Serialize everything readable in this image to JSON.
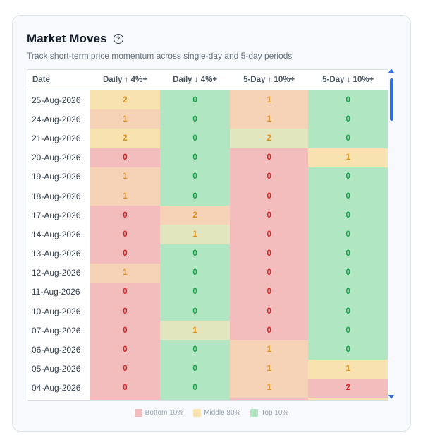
{
  "header": {
    "title": "Market Moves",
    "help_icon": "question-circle-icon",
    "subtitle": "Track short-term price momentum across single-day and 5-day periods"
  },
  "table": {
    "columns": [
      "Date",
      "Daily ↑ 4%+",
      "Daily ↓ 4%+",
      "5-Day ↑ 10%+",
      "5-Day ↓ 10%+"
    ],
    "rows": [
      {
        "date": "25-Aug-2026",
        "values": [
          "2",
          "0",
          "1",
          "0"
        ],
        "bands": [
          "mid",
          "top",
          "mid-low",
          "top"
        ]
      },
      {
        "date": "24-Aug-2026",
        "values": [
          "1",
          "0",
          "1",
          "0"
        ],
        "bands": [
          "mid-low",
          "top",
          "mid-low",
          "top"
        ]
      },
      {
        "date": "21-Aug-2026",
        "values": [
          "2",
          "0",
          "2",
          "0"
        ],
        "bands": [
          "mid",
          "top",
          "mid-high",
          "top"
        ]
      },
      {
        "date": "20-Aug-2026",
        "values": [
          "0",
          "0",
          "0",
          "1"
        ],
        "bands": [
          "bottom",
          "top",
          "bottom",
          "mid"
        ]
      },
      {
        "date": "19-Aug-2026",
        "values": [
          "1",
          "0",
          "0",
          "0"
        ],
        "bands": [
          "mid-low",
          "top",
          "bottom",
          "top"
        ]
      },
      {
        "date": "18-Aug-2026",
        "values": [
          "1",
          "0",
          "0",
          "0"
        ],
        "bands": [
          "mid-low",
          "top",
          "bottom",
          "top"
        ]
      },
      {
        "date": "17-Aug-2026",
        "values": [
          "0",
          "2",
          "0",
          "0"
        ],
        "bands": [
          "bottom",
          "mid-low",
          "bottom",
          "top"
        ]
      },
      {
        "date": "14-Aug-2026",
        "values": [
          "0",
          "1",
          "0",
          "0"
        ],
        "bands": [
          "bottom",
          "mid-high",
          "bottom",
          "top"
        ]
      },
      {
        "date": "13-Aug-2026",
        "values": [
          "0",
          "0",
          "0",
          "0"
        ],
        "bands": [
          "bottom",
          "top",
          "bottom",
          "top"
        ]
      },
      {
        "date": "12-Aug-2026",
        "values": [
          "1",
          "0",
          "0",
          "0"
        ],
        "bands": [
          "mid-low",
          "top",
          "bottom",
          "top"
        ]
      },
      {
        "date": "11-Aug-2026",
        "values": [
          "0",
          "0",
          "0",
          "0"
        ],
        "bands": [
          "bottom",
          "top",
          "bottom",
          "top"
        ]
      },
      {
        "date": "10-Aug-2026",
        "values": [
          "0",
          "0",
          "0",
          "0"
        ],
        "bands": [
          "bottom",
          "top",
          "bottom",
          "top"
        ]
      },
      {
        "date": "07-Aug-2026",
        "values": [
          "0",
          "1",
          "0",
          "0"
        ],
        "bands": [
          "bottom",
          "mid-high",
          "bottom",
          "top"
        ]
      },
      {
        "date": "06-Aug-2026",
        "values": [
          "0",
          "0",
          "1",
          "0"
        ],
        "bands": [
          "bottom",
          "top",
          "mid-low",
          "top"
        ]
      },
      {
        "date": "05-Aug-2026",
        "values": [
          "0",
          "0",
          "1",
          "1"
        ],
        "bands": [
          "bottom",
          "top",
          "mid-low",
          "mid"
        ]
      },
      {
        "date": "04-Aug-2026",
        "values": [
          "0",
          "0",
          "1",
          "2"
        ],
        "bands": [
          "bottom",
          "top",
          "mid-low",
          "bottom"
        ]
      },
      {
        "date": "",
        "values": [
          "",
          "",
          "",
          ""
        ],
        "bands": [
          "bottom",
          "top",
          "bottom",
          "mid"
        ]
      }
    ]
  },
  "colors": {
    "bottom": "#f4bdbd",
    "mid-low": "#f6d3b7",
    "mid": "#f8e2b0",
    "mid-high": "#e2e6bf",
    "top": "#b1e6c3",
    "text_bottom": "#dc2626",
    "text_mid": "#e0901a",
    "text_top": "#16a34a"
  },
  "legend": [
    {
      "label": "Bottom 10%",
      "color": "#f4bdbd"
    },
    {
      "label": "Middle 80%",
      "color": "#f8e2b0"
    },
    {
      "label": "Top 10%",
      "color": "#b1e6c3"
    }
  ]
}
